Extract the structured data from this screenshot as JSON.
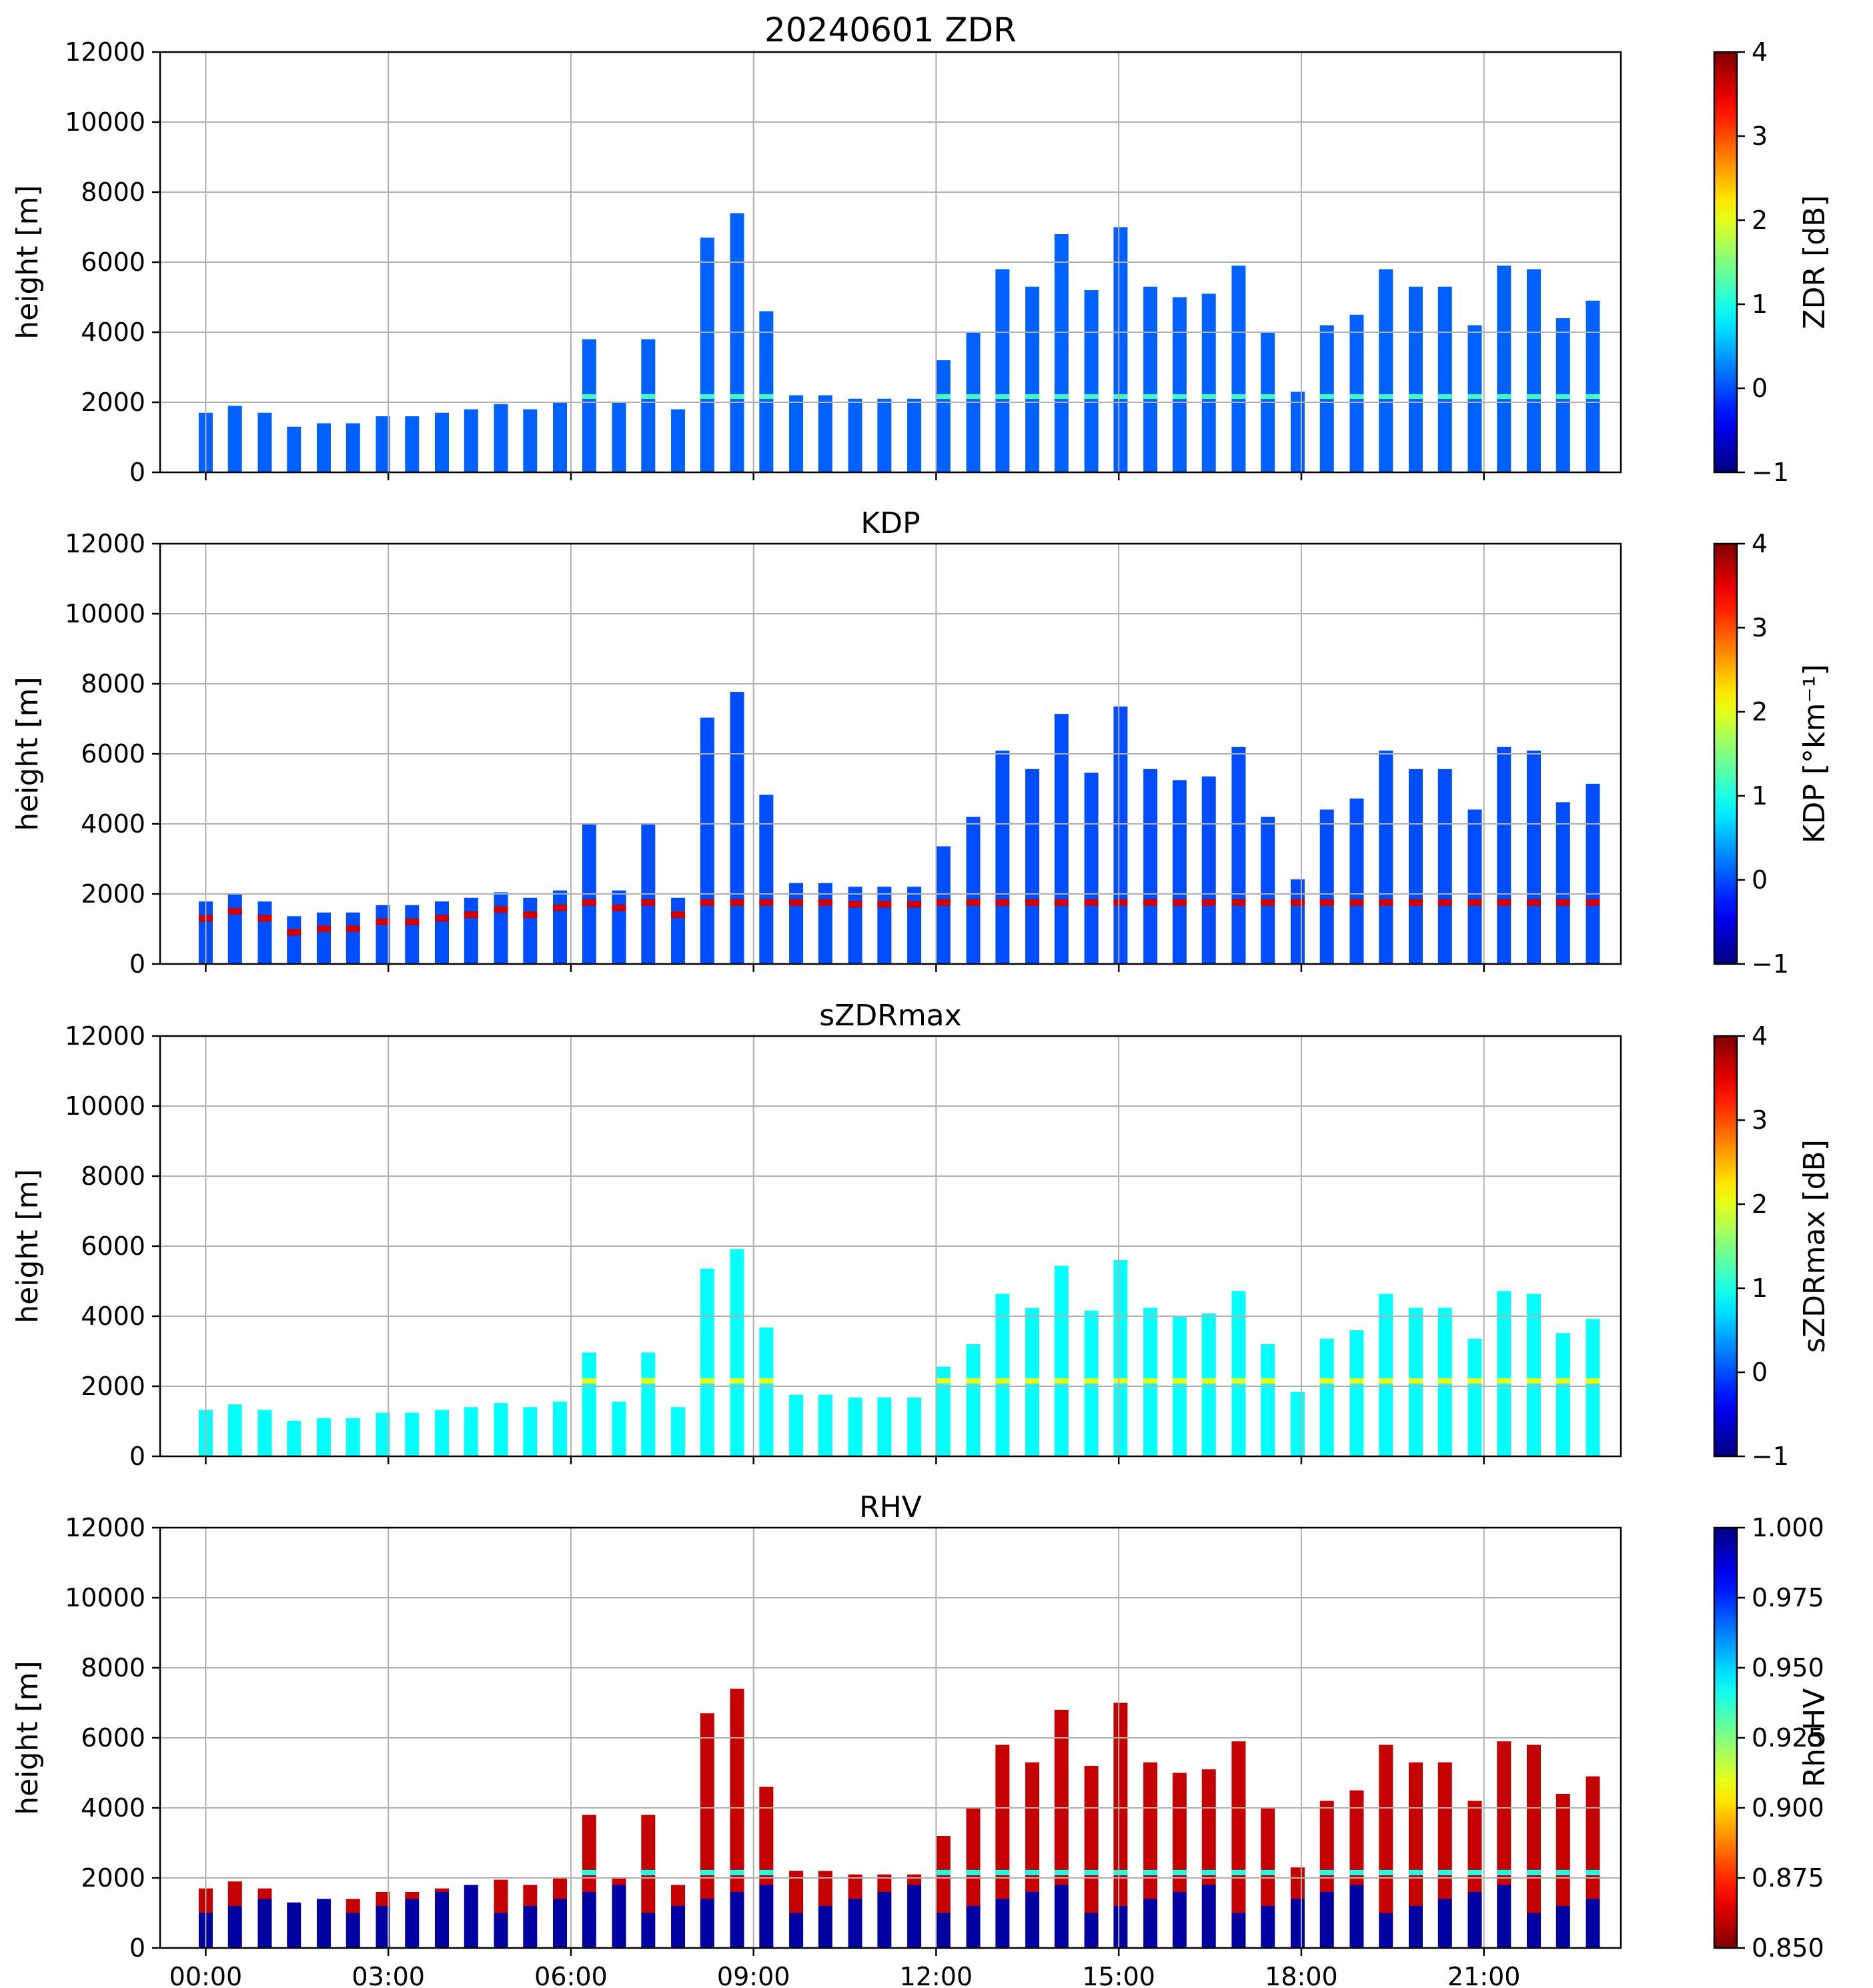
{
  "x_tick_labels": [
    "00:00",
    "03:00",
    "06:00",
    "09:00",
    "12:00",
    "15:00",
    "18:00",
    "21:00"
  ],
  "x_range_hours": [
    -0.75,
    23.25
  ],
  "gate_times_hours": [
    0.0,
    0.48,
    0.97,
    1.45,
    1.94,
    2.42,
    2.91,
    3.39,
    3.88,
    4.36,
    4.85,
    5.33,
    5.82,
    6.3,
    6.79,
    7.27,
    7.76,
    8.24,
    8.73,
    9.21,
    9.7,
    10.18,
    10.67,
    11.15,
    11.64,
    12.12,
    12.61,
    13.09,
    13.58,
    14.06,
    14.55,
    15.03,
    15.52,
    16.0,
    16.48,
    16.97,
    17.45,
    17.94,
    18.42,
    18.91,
    19.39,
    19.88,
    20.36,
    20.85,
    21.33,
    21.82,
    22.3,
    22.79
  ],
  "echo_top_heights_m": [
    1700,
    1900,
    1700,
    1300,
    1400,
    1400,
    1600,
    1600,
    1700,
    1800,
    1950,
    1800,
    2000,
    3800,
    2000,
    3800,
    1800,
    6700,
    7400,
    4600,
    2200,
    2200,
    2100,
    2100,
    2100,
    3200,
    4000,
    5800,
    5300,
    6800,
    5200,
    7000,
    5300,
    5000,
    5100,
    5900,
    4000,
    2300,
    4200,
    4500,
    5800,
    5300,
    5300,
    4200,
    5900,
    5800,
    4400,
    4900
  ],
  "melting_layer_height_m": 2150,
  "chart_data": [
    {
      "type": "heatmap",
      "title": "20240601 ZDR",
      "ylabel": "height [m]",
      "ylim": [
        0,
        12000
      ],
      "yticks": [
        0,
        2000,
        4000,
        6000,
        8000,
        10000,
        12000
      ],
      "colorbar": {
        "label": "ZDR [dB]",
        "range": [
          -1,
          4
        ],
        "ticks": [
          -1,
          0,
          1,
          2,
          3,
          4
        ],
        "tick_labels": [
          "−1",
          "0",
          "1",
          "2",
          "3",
          "4"
        ],
        "colormap": "jet"
      },
      "typical_value": 0.1
    },
    {
      "type": "heatmap",
      "title": "KDP",
      "ylabel": "height [m]",
      "ylim": [
        0,
        12000
      ],
      "yticks": [
        0,
        2000,
        4000,
        6000,
        8000,
        10000,
        12000
      ],
      "colorbar": {
        "label": "KDP [°km⁻¹]",
        "range": [
          -1,
          4
        ],
        "ticks": [
          -1,
          0,
          1,
          2,
          3,
          4
        ],
        "tick_labels": [
          "−1",
          "0",
          "1",
          "2",
          "3",
          "4"
        ],
        "colormap": "jet"
      },
      "typical_value": 0.0
    },
    {
      "type": "heatmap",
      "title": "sZDRmax",
      "ylabel": "height [m]",
      "ylim": [
        0,
        12000
      ],
      "yticks": [
        0,
        2000,
        4000,
        6000,
        8000,
        10000,
        12000
      ],
      "colorbar": {
        "label": "sZDRmax [dB]",
        "range": [
          -1,
          4
        ],
        "ticks": [
          -1,
          0,
          1,
          2,
          3,
          4
        ],
        "tick_labels": [
          "−1",
          "0",
          "1",
          "2",
          "3",
          "4"
        ],
        "colormap": "jet"
      },
      "typical_value": 0.9
    },
    {
      "type": "heatmap",
      "title": "RHV",
      "ylabel": "height [m]",
      "ylim": [
        0,
        12000
      ],
      "yticks": [
        0,
        2000,
        4000,
        6000,
        8000,
        10000,
        12000
      ],
      "colorbar": {
        "label": "RhoHV",
        "range": [
          0.85,
          1.0
        ],
        "ticks": [
          0.85,
          0.875,
          0.9,
          0.925,
          0.95,
          0.975,
          1.0
        ],
        "tick_labels": [
          "0.850",
          "0.875",
          "0.900",
          "0.925",
          "0.950",
          "0.975",
          "1.000"
        ],
        "colormap": "jet_r"
      },
      "typical_value": 0.86
    }
  ]
}
